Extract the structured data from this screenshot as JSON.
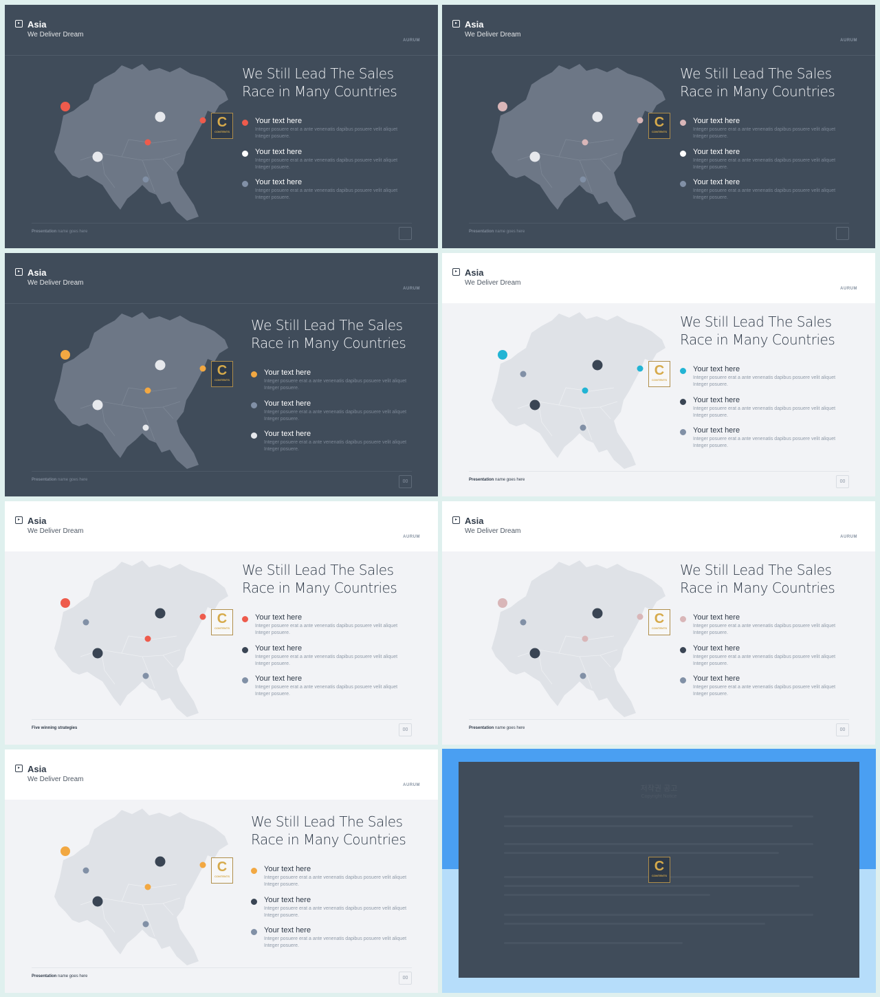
{
  "slides": [
    {
      "id": "s1",
      "theme": "dark",
      "title": "Asia",
      "subtitle": "We Deliver Dream",
      "brand": "AURUM",
      "heading_line1": "We Still Lead The Sales",
      "heading_line2": "Race in Many Countries",
      "items": [
        {
          "label": "Your text here",
          "desc": "Integer posuere erat a ante venenatis dapibus posuere velit aliquet Integer posuere."
        },
        {
          "label": "Your text here",
          "desc": "Integer posuere erat a ante venenatis dapibus posuere velit aliquet Integer posuere."
        },
        {
          "label": "Your text here",
          "desc": "Integer posuere erat a ante venenatis dapibus posuere velit aliquet Integer posuere."
        }
      ],
      "colors": [
        "#ee5b4c",
        "#ffffff",
        "#8190a6"
      ],
      "map_color": "#6d7786",
      "footer_bold": "Presentation",
      "footer_text": "name goes here",
      "page": ""
    },
    {
      "id": "s2",
      "theme": "dark",
      "title": "Asia",
      "subtitle": "We Deliver Dream",
      "brand": "AURUM",
      "heading_line1": "We Still Lead The Sales",
      "heading_line2": "Race in Many Countries",
      "items": [
        {
          "label": "Your text here",
          "desc": "Integer posuere erat a ante venenatis dapibus posuere velit aliquet Integer posuere."
        },
        {
          "label": "Your text here",
          "desc": "Integer posuere erat a ante venenatis dapibus posuere velit aliquet Integer posuere."
        },
        {
          "label": "Your text here",
          "desc": "Integer posuere erat a ante venenatis dapibus posuere velit aliquet Integer posuere."
        }
      ],
      "colors": [
        "#d9b6b8",
        "#ffffff",
        "#8190a6"
      ],
      "map_color": "#6d7786",
      "footer_bold": "Presentation",
      "footer_text": "name goes here",
      "page": ""
    },
    {
      "id": "s3",
      "theme": "dark",
      "title": "Asia",
      "subtitle": "We Deliver Dream",
      "brand": "AURUM",
      "heading_line1": "We Still Lead The Sales",
      "heading_line2": "Race in Many Countries",
      "items": [
        {
          "label": "Your text here",
          "desc": "Integer posuere erat a ante venenatis dapibus posuere velit aliquet Integer posuere."
        },
        {
          "label": "Your text here",
          "desc": "Integer posuere erat a ante venenatis dapibus posuere velit aliquet Integer posuere."
        },
        {
          "label": "Your text here",
          "desc": "Integer posuere erat a ante venenatis dapibus posuere velit aliquet Integer posuere."
        }
      ],
      "colors": [
        "#f2a842",
        "#8190a6",
        "#e6e8ec"
      ],
      "map_color": "#6d7786",
      "footer_bold": "Presentation",
      "footer_text": "name goes here",
      "page": "00"
    },
    {
      "id": "s4",
      "theme": "light",
      "title": "Asia",
      "subtitle": "We Deliver Dream",
      "brand": "AURUM",
      "heading_line1": "We Still Lead The Sales",
      "heading_line2": "Race in Many Countries",
      "items": [
        {
          "label": "Your text here",
          "desc": "Integer posuere erat a ante venenatis dapibus posuere velit aliquet Integer posuere."
        },
        {
          "label": "Your text here",
          "desc": "Integer posuere erat a ante venenatis dapibus posuere velit aliquet Integer posuere."
        },
        {
          "label": "Your text here",
          "desc": "Integer posuere erat a ante venenatis dapibus posuere velit aliquet Integer posuere."
        }
      ],
      "colors": [
        "#22b4d4",
        "#3a4554",
        "#8190a6"
      ],
      "map_color": "#dfe2e7",
      "footer_bold": "Presentation",
      "footer_text": "name goes here",
      "page": "00"
    },
    {
      "id": "s5",
      "theme": "light",
      "title": "Asia",
      "subtitle": "We Deliver Dream",
      "brand": "AURUM",
      "heading_line1": "We Still Lead The Sales",
      "heading_line2": "Race in Many Countries",
      "items": [
        {
          "label": "Your text here",
          "desc": "Integer posuere erat a ante venenatis dapibus posuere velit aliquet Integer posuere."
        },
        {
          "label": "Your text here",
          "desc": "Integer posuere erat a ante venenatis dapibus posuere velit aliquet Integer posuere."
        },
        {
          "label": "Your text here",
          "desc": "Integer posuere erat a ante venenatis dapibus posuere velit aliquet Integer posuere."
        }
      ],
      "colors": [
        "#ee5b4c",
        "#3a4554",
        "#8190a6"
      ],
      "map_color": "#dfe2e7",
      "footer_bold": "Five winning strategies",
      "footer_text": "",
      "page": "00"
    },
    {
      "id": "s6",
      "theme": "light",
      "title": "Asia",
      "subtitle": "We Deliver Dream",
      "brand": "AURUM",
      "heading_line1": "We Still Lead The Sales",
      "heading_line2": "Race in Many Countries",
      "items": [
        {
          "label": "Your text here",
          "desc": "Integer posuere erat a ante venenatis dapibus posuere velit aliquet Integer posuere."
        },
        {
          "label": "Your text here",
          "desc": "Integer posuere erat a ante venenatis dapibus posuere velit aliquet Integer posuere."
        },
        {
          "label": "Your text here",
          "desc": "Integer posuere erat a ante venenatis dapibus posuere velit aliquet Integer posuere."
        }
      ],
      "colors": [
        "#d9b6b8",
        "#3a4554",
        "#8190a6"
      ],
      "map_color": "#dfe2e7",
      "footer_bold": "Presentation",
      "footer_text": "name goes here",
      "page": "00"
    },
    {
      "id": "s7",
      "theme": "light",
      "title": "Asia",
      "subtitle": "We Deliver Dream",
      "brand": "AURUM",
      "heading_line1": "We Still Lead The Sales",
      "heading_line2": "Race in Many Countries",
      "items": [
        {
          "label": "Your text here",
          "desc": "Integer posuere erat a ante venenatis dapibus posuere velit aliquet Integer posuere."
        },
        {
          "label": "Your text here",
          "desc": "Integer posuere erat a ante venenatis dapibus posuere velit aliquet Integer posuere."
        },
        {
          "label": "Your text here",
          "desc": "Integer posuere erat a ante venenatis dapibus posuere velit aliquet Integer posuere."
        }
      ],
      "colors": [
        "#f2a842",
        "#3a4554",
        "#8190a6"
      ],
      "map_color": "#dfe2e7",
      "footer_bold": "Presentation",
      "footer_text": "name goes here",
      "page": "00"
    }
  ],
  "logo": {
    "letter": "C",
    "text": "CONTENTS"
  },
  "notice": {
    "title": "저작권 공고",
    "subtitle": "Copyright Notice"
  }
}
